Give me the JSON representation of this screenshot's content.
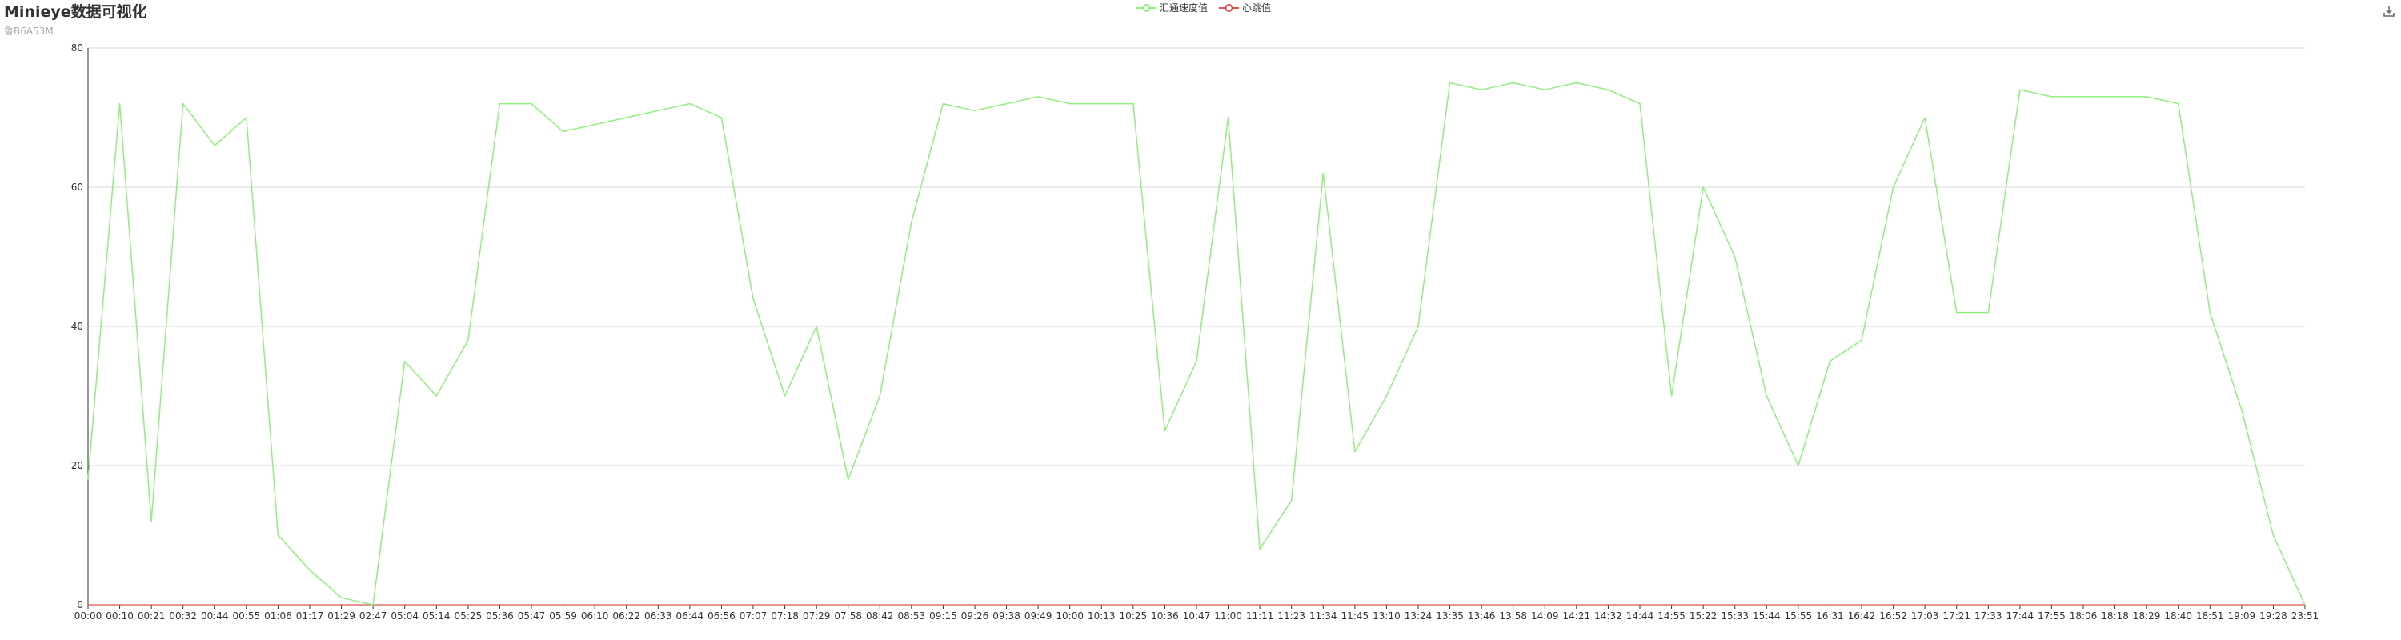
{
  "page": {
    "title": "Minieye数据可视化",
    "subtitle": "鲁B6A53M",
    "download_icon": "download-icon"
  },
  "chart_data": {
    "type": "line",
    "title": "Minieye数据可视化",
    "subtitle": "鲁B6A53M",
    "xlabel": "",
    "ylabel": "",
    "ylim": [
      0,
      80
    ],
    "yticks": [
      0,
      20,
      40,
      60,
      80
    ],
    "grid": true,
    "legend_placement": "top-center",
    "categories": [
      "00:00",
      "00:10",
      "00:21",
      "00:32",
      "00:44",
      "00:55",
      "01:06",
      "01:17",
      "01:29",
      "02:47",
      "05:04",
      "05:14",
      "05:25",
      "05:36",
      "05:47",
      "05:59",
      "06:10",
      "06:22",
      "06:33",
      "06:44",
      "06:56",
      "07:07",
      "07:18",
      "07:29",
      "07:58",
      "08:42",
      "08:53",
      "09:15",
      "09:26",
      "09:38",
      "09:49",
      "10:00",
      "10:13",
      "10:25",
      "10:36",
      "10:47",
      "11:00",
      "11:11",
      "11:23",
      "11:34",
      "11:45",
      "13:10",
      "13:24",
      "13:35",
      "13:46",
      "13:58",
      "14:09",
      "14:21",
      "14:32",
      "14:44",
      "14:55",
      "15:22",
      "15:33",
      "15:44",
      "15:55",
      "16:31",
      "16:42",
      "16:52",
      "17:03",
      "17:21",
      "17:33",
      "17:44",
      "17:55",
      "18:06",
      "18:18",
      "18:29",
      "18:40",
      "18:51",
      "19:09",
      "19:28",
      "23:51"
    ],
    "series": [
      {
        "name": "汇通速度值",
        "color": "#90ee7e",
        "values": [
          18,
          72,
          12,
          72,
          66,
          70,
          10,
          5,
          1,
          0,
          35,
          30,
          38,
          72,
          72,
          68,
          69,
          70,
          71,
          72,
          70,
          44,
          30,
          40,
          18,
          30,
          55,
          72,
          71,
          72,
          73,
          72,
          72,
          72,
          25,
          35,
          70,
          8,
          15,
          62,
          22,
          30,
          40,
          75,
          74,
          75,
          74,
          75,
          74,
          72,
          30,
          60,
          50,
          30,
          20,
          35,
          38,
          60,
          70,
          42,
          42,
          74,
          73,
          73,
          73,
          73,
          72,
          42,
          28,
          10,
          0
        ]
      },
      {
        "name": "心跳值",
        "color": "#d9534f",
        "values": [
          0,
          0,
          0,
          0,
          0,
          0,
          0,
          0,
          0,
          0,
          0,
          0,
          0,
          0,
          0,
          0,
          0,
          0,
          0,
          0,
          0,
          0,
          0,
          0,
          0,
          0,
          0,
          0,
          0,
          0,
          0,
          0,
          0,
          0,
          0,
          0,
          0,
          0,
          0,
          0,
          0,
          0,
          0,
          0,
          0,
          0,
          0,
          0,
          0,
          0,
          0,
          0,
          0,
          0,
          0,
          0,
          0,
          0,
          0,
          0,
          0,
          0,
          0,
          0,
          0,
          0,
          0,
          0,
          0,
          0,
          0
        ]
      }
    ]
  }
}
